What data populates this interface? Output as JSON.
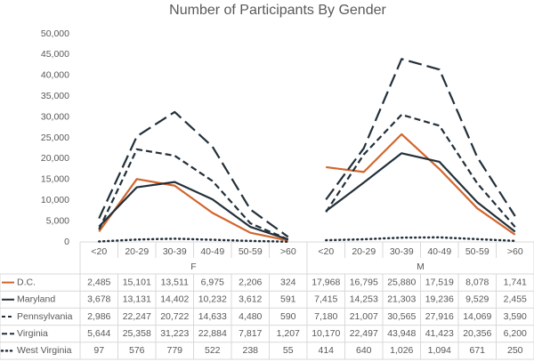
{
  "chart_data": {
    "type": "line",
    "title": "Number of Participants By Gender",
    "groups": [
      {
        "label": "F",
        "categories": [
          "<20",
          "20-29",
          "30-39",
          "40-49",
          "50-59",
          ">60"
        ]
      },
      {
        "label": "M",
        "categories": [
          "<20",
          "20-29",
          "30-39",
          "40-49",
          "50-59",
          ">60"
        ]
      }
    ],
    "series": [
      {
        "name": "D.C.",
        "color": "#d2652d",
        "dash": "solid",
        "values": [
          2485,
          15101,
          13511,
          6975,
          2206,
          324,
          17968,
          16795,
          25880,
          17519,
          8078,
          1741
        ],
        "value_labels": [
          "2,485",
          "15,101",
          "13,511",
          "6,975",
          "2,206",
          "324",
          "17,968",
          "16,795",
          "25,880",
          "17,519",
          "8,078",
          "1,741"
        ]
      },
      {
        "name": "Maryland",
        "color": "#22303a",
        "dash": "solid",
        "values": [
          3678,
          13131,
          14402,
          10232,
          3612,
          591,
          7415,
          14253,
          21303,
          19236,
          9529,
          2455
        ],
        "value_labels": [
          "3,678",
          "13,131",
          "14,402",
          "10,232",
          "3,612",
          "591",
          "7,415",
          "14,253",
          "21,303",
          "19,236",
          "9,529",
          "2,455"
        ]
      },
      {
        "name": "Pennsylvania",
        "color": "#22303a",
        "dash": "dash",
        "values": [
          2986,
          22247,
          20722,
          14633,
          4480,
          590,
          7180,
          21007,
          30565,
          27916,
          14069,
          3590
        ],
        "value_labels": [
          "2,986",
          "22,247",
          "20,722",
          "14,633",
          "4,480",
          "590",
          "7,180",
          "21,007",
          "30,565",
          "27,916",
          "14,069",
          "3,590"
        ]
      },
      {
        "name": "Virginia",
        "color": "#22303a",
        "dash": "longdash",
        "values": [
          5644,
          25358,
          31223,
          22884,
          7817,
          1207,
          10170,
          22497,
          43948,
          41423,
          20356,
          6200
        ],
        "value_labels": [
          "5,644",
          "25,358",
          "31,223",
          "22,884",
          "7,817",
          "1,207",
          "10,170",
          "22,497",
          "43,948",
          "41,423",
          "20,356",
          "6,200"
        ]
      },
      {
        "name": "West Virginia",
        "color": "#22303a",
        "dash": "dot",
        "values": [
          97,
          576,
          779,
          522,
          238,
          55,
          414,
          640,
          1026,
          1094,
          671,
          250
        ],
        "value_labels": [
          "97",
          "576",
          "779",
          "522",
          "238",
          "55",
          "414",
          "640",
          "1,026",
          "1,094",
          "671",
          "250"
        ]
      }
    ],
    "ylim": [
      0,
      50000
    ],
    "yticks": [
      0,
      {
        "value": 5000,
        "label": "5,000"
      },
      {
        "value": 10000,
        "label": "10,000"
      },
      {
        "value": 15000,
        "label": "15,000"
      },
      {
        "value": 20000,
        "label": "20,000"
      },
      {
        "value": 25000,
        "label": "25,000"
      },
      {
        "value": 30000,
        "label": "30,000"
      },
      {
        "value": 35000,
        "label": "35,000"
      },
      {
        "value": 40000,
        "label": "40,000"
      },
      {
        "value": 45000,
        "label": "45,000"
      },
      {
        "value": 50000,
        "label": "50,000"
      }
    ],
    "legend": "table"
  }
}
